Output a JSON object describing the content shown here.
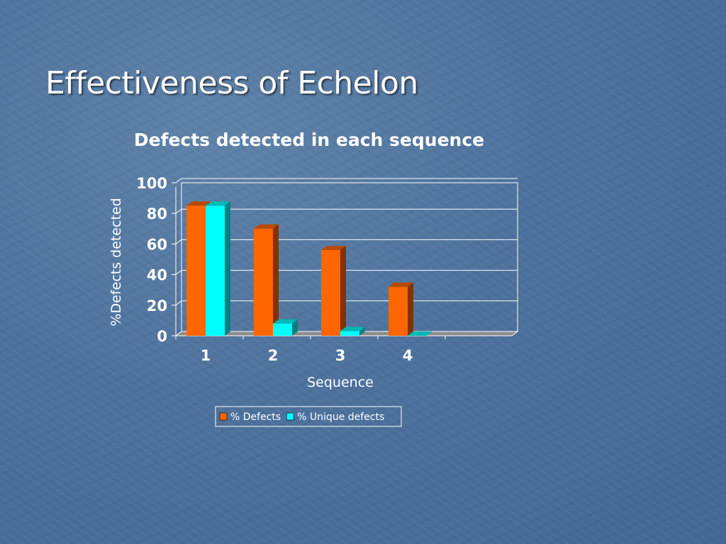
{
  "slide": {
    "title": "Effectiveness of Echelon"
  },
  "colors": {
    "background": "#4d729d",
    "series_defects": "#ff6600",
    "series_unique": "#00ffff",
    "gridline": "#ffffff",
    "floor": "#8c8c8c"
  },
  "chart_data": {
    "type": "bar",
    "title": "Defects detected in each sequence",
    "xlabel": "Sequence",
    "ylabel": "%Defects detected",
    "ylim": [
      0,
      100
    ],
    "yticks": [
      0,
      20,
      40,
      60,
      80,
      100
    ],
    "categories": [
      "1",
      "2",
      "3",
      "4"
    ],
    "series": [
      {
        "name": "% Defects",
        "color": "#ff6600",
        "values": [
          85,
          70,
          56,
          32
        ]
      },
      {
        "name": "% Unique defects",
        "color": "#00ffff",
        "values": [
          85,
          8,
          3,
          0
        ]
      }
    ],
    "grid": true,
    "legend": "bottom",
    "style": "3d-column"
  }
}
